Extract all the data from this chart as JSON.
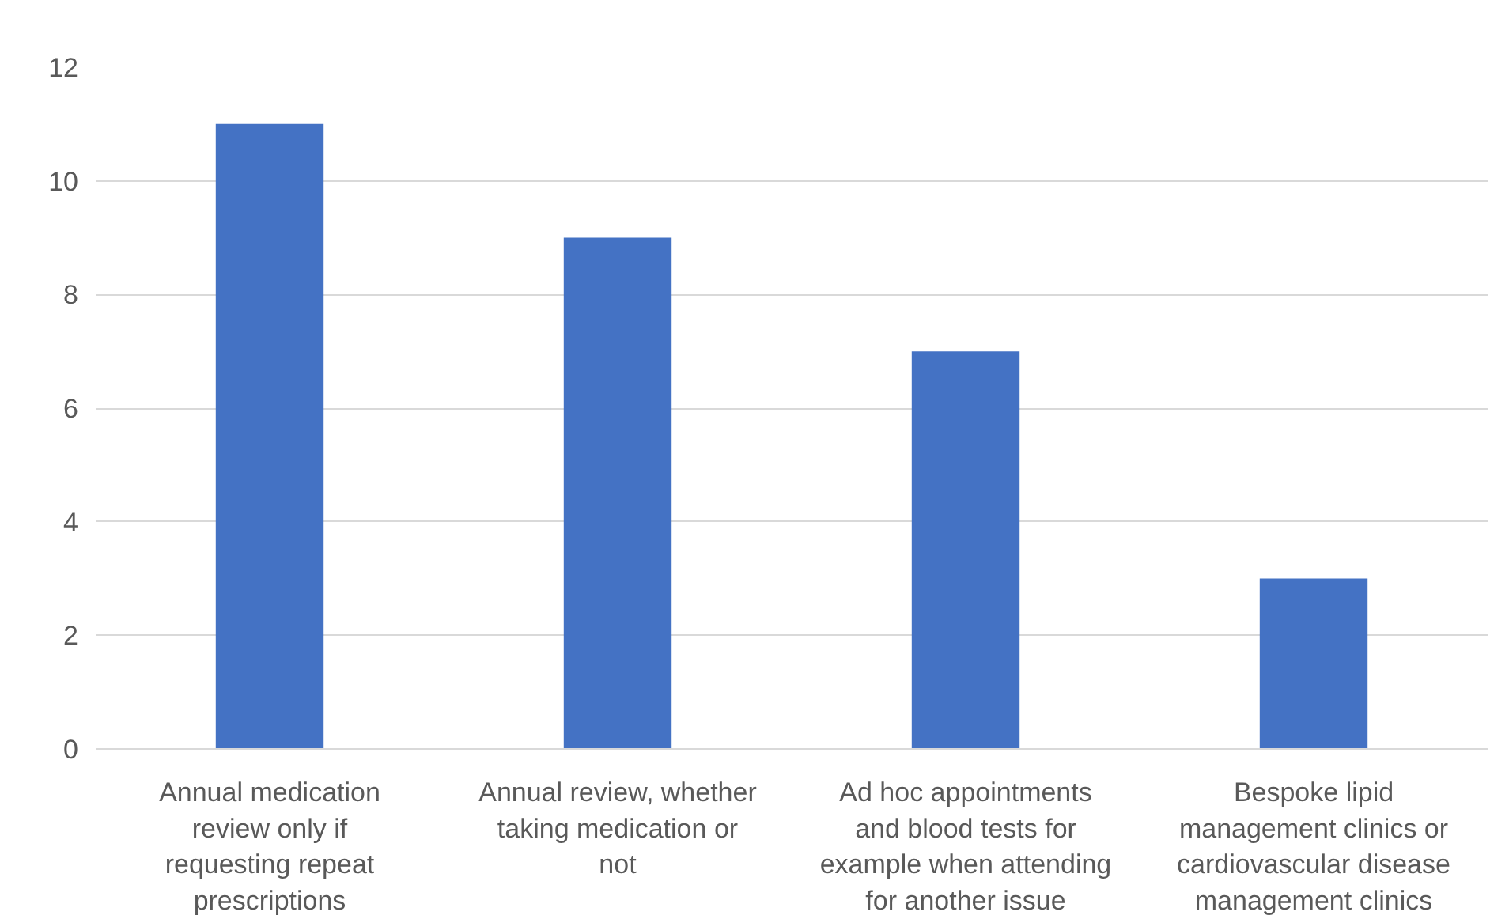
{
  "chart_data": {
    "type": "bar",
    "categories": [
      "Annual medication review only if requesting repeat prescriptions",
      "Annual review, whether taking medication or not",
      "Ad hoc appointments and blood tests for example when attending for another issue",
      "Bespoke lipid management clinics or cardiovascular disease management clinics"
    ],
    "values": [
      11,
      9,
      7,
      3
    ],
    "color": "#4472c4",
    "ylim": [
      0,
      12
    ],
    "yticks": [
      0,
      2,
      4,
      6,
      8,
      10,
      12
    ],
    "grid": "y"
  }
}
